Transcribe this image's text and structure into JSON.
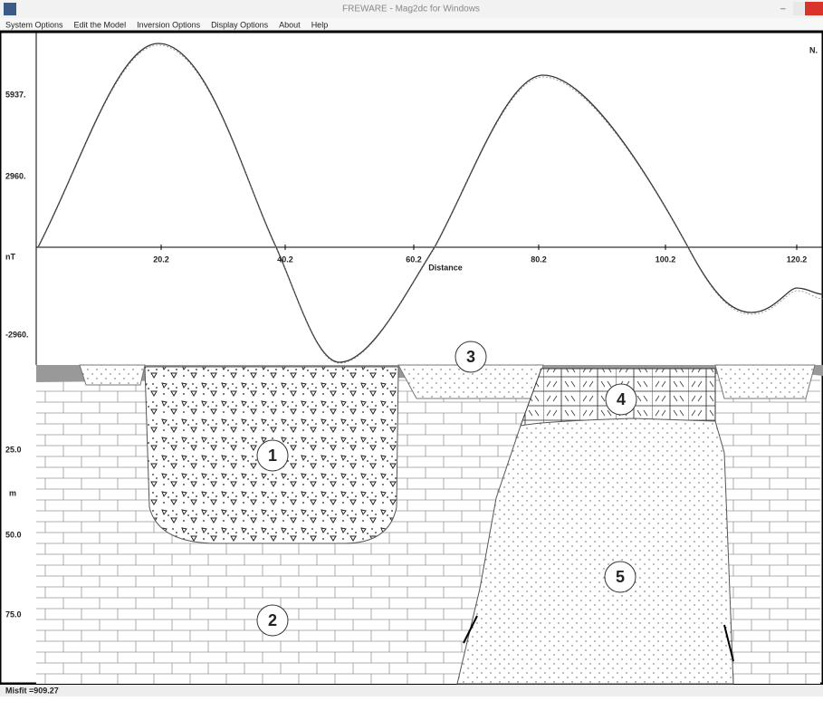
{
  "window": {
    "title": "FREWARE - Mag2dc for Windows"
  },
  "menu": [
    "System Options",
    "Edit the Model",
    "Inversion Options",
    "Display Options",
    "About",
    "Help"
  ],
  "plot": {
    "corner_label": "N.",
    "y_labels": [
      "5937.",
      "2960.",
      "-2960."
    ],
    "y_unit": "nT",
    "x_labels": [
      "20.2",
      "40.2",
      "60.2",
      "80.2",
      "100.2",
      "120.2"
    ],
    "x_axis_label": "Distance"
  },
  "section": {
    "depth_labels": [
      "25.0",
      "50.0",
      "75.0"
    ],
    "depth_unit": "m",
    "bodies": [
      "1",
      "2",
      "3",
      "4",
      "5"
    ]
  },
  "status": {
    "misfit": "Misfit =909.27"
  }
}
